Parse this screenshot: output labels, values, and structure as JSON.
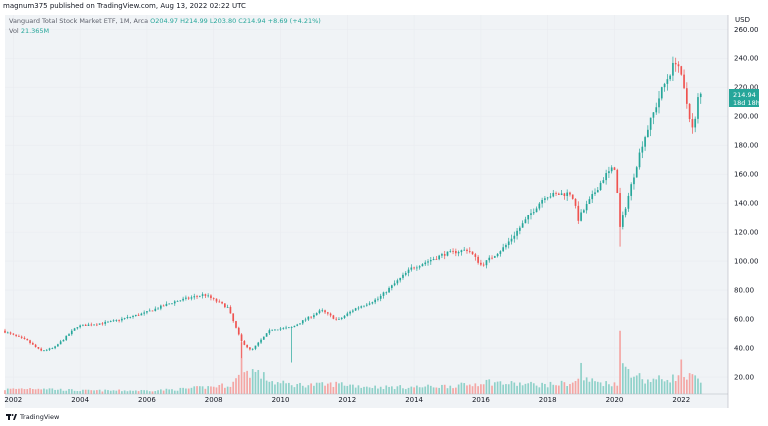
{
  "header": {
    "publish_line": "magnum375 published on TradingView.com, Aug 13, 2022 02:22 UTC"
  },
  "legend": {
    "symbol": "Vanguard Total Stock Market ETF, 1M, Arca",
    "open": "O204.97",
    "high": "H214.99",
    "low": "L203.80",
    "close": "C214.94",
    "change": "+8.69 (+4.21%)",
    "volume_label": "Vol",
    "volume_value": "21.365M"
  },
  "price_tags": {
    "price": "214.94",
    "countdown": "18d 18h"
  },
  "footer": {
    "brand": "TradingView"
  },
  "colors": {
    "up": "#26a69a",
    "down": "#ef5350",
    "up_volume": "#8fd1c9",
    "down_volume": "#f4a6a4",
    "grid": "#e9ebf0",
    "background": "#f0f3f6"
  },
  "chart_data": {
    "type": "candlestick",
    "interval": "1M",
    "currency": "USD",
    "y_tick_labels": [
      "20.00",
      "40.00",
      "60.00",
      "80.00",
      "100.00",
      "120.00",
      "140.00",
      "160.00",
      "180.00",
      "200.00",
      "220.00",
      "240.00",
      "260.00"
    ],
    "x_tick_labels": [
      "2002",
      "2004",
      "2006",
      "2008",
      "2010",
      "2012",
      "2014",
      "2016",
      "2018",
      "2020",
      "2022"
    ],
    "ylim": [
      0,
      265
    ],
    "grid": true,
    "anchors": [
      {
        "t": 2001.75,
        "price": 52,
        "vol": 4
      },
      {
        "t": 2002.5,
        "price": 45,
        "vol": 5
      },
      {
        "t": 2002.9,
        "price": 38,
        "vol": 5
      },
      {
        "t": 2003.3,
        "price": 40,
        "vol": 4
      },
      {
        "t": 2004.0,
        "price": 55,
        "vol": 3
      },
      {
        "t": 2005.0,
        "price": 58,
        "vol": 3
      },
      {
        "t": 2006.0,
        "price": 64,
        "vol": 3
      },
      {
        "t": 2006.9,
        "price": 72,
        "vol": 4
      },
      {
        "t": 2007.8,
        "price": 77,
        "vol": 6
      },
      {
        "t": 2008.5,
        "price": 68,
        "vol": 8
      },
      {
        "t": 2008.9,
        "price": 45,
        "vol": 18
      },
      {
        "t": 2009.2,
        "price": 38,
        "vol": 20
      },
      {
        "t": 2009.8,
        "price": 53,
        "vol": 10
      },
      {
        "t": 2010.4,
        "price": 54,
        "vol": 8
      },
      {
        "t": 2011.3,
        "price": 66,
        "vol": 8
      },
      {
        "t": 2011.8,
        "price": 59,
        "vol": 9
      },
      {
        "t": 2012.3,
        "price": 67,
        "vol": 7
      },
      {
        "t": 2013.0,
        "price": 74,
        "vol": 6
      },
      {
        "t": 2014.0,
        "price": 95,
        "vol": 6
      },
      {
        "t": 2015.0,
        "price": 105,
        "vol": 7
      },
      {
        "t": 2015.7,
        "price": 108,
        "vol": 8
      },
      {
        "t": 2016.1,
        "price": 97,
        "vol": 11
      },
      {
        "t": 2016.8,
        "price": 110,
        "vol": 9
      },
      {
        "t": 2018.0,
        "price": 145,
        "vol": 8
      },
      {
        "t": 2018.8,
        "price": 147,
        "vol": 10
      },
      {
        "t": 2019.0,
        "price": 129,
        "vol": 13
      },
      {
        "t": 2019.8,
        "price": 159,
        "vol": 9
      },
      {
        "t": 2020.1,
        "price": 165,
        "vol": 10
      },
      {
        "t": 2020.25,
        "price": 123,
        "vol": 25
      },
      {
        "t": 2020.9,
        "price": 180,
        "vol": 12
      },
      {
        "t": 2021.5,
        "price": 218,
        "vol": 13
      },
      {
        "t": 2021.95,
        "price": 240,
        "vol": 15
      },
      {
        "t": 2022.45,
        "price": 188,
        "vol": 14
      },
      {
        "t": 2022.6,
        "price": 215,
        "vol": 8
      }
    ],
    "spikes": [
      {
        "t": 2008.83,
        "low": 33
      },
      {
        "t": 2010.35,
        "low": 30
      },
      {
        "t": 2020.17,
        "low": 110
      }
    ],
    "volume_spikes": [
      {
        "t": 2008.83,
        "vol": 45
      },
      {
        "t": 2020.17,
        "vol": 55
      },
      {
        "t": 2019.0,
        "vol": 27
      },
      {
        "t": 2022.0,
        "vol": 30
      }
    ]
  }
}
